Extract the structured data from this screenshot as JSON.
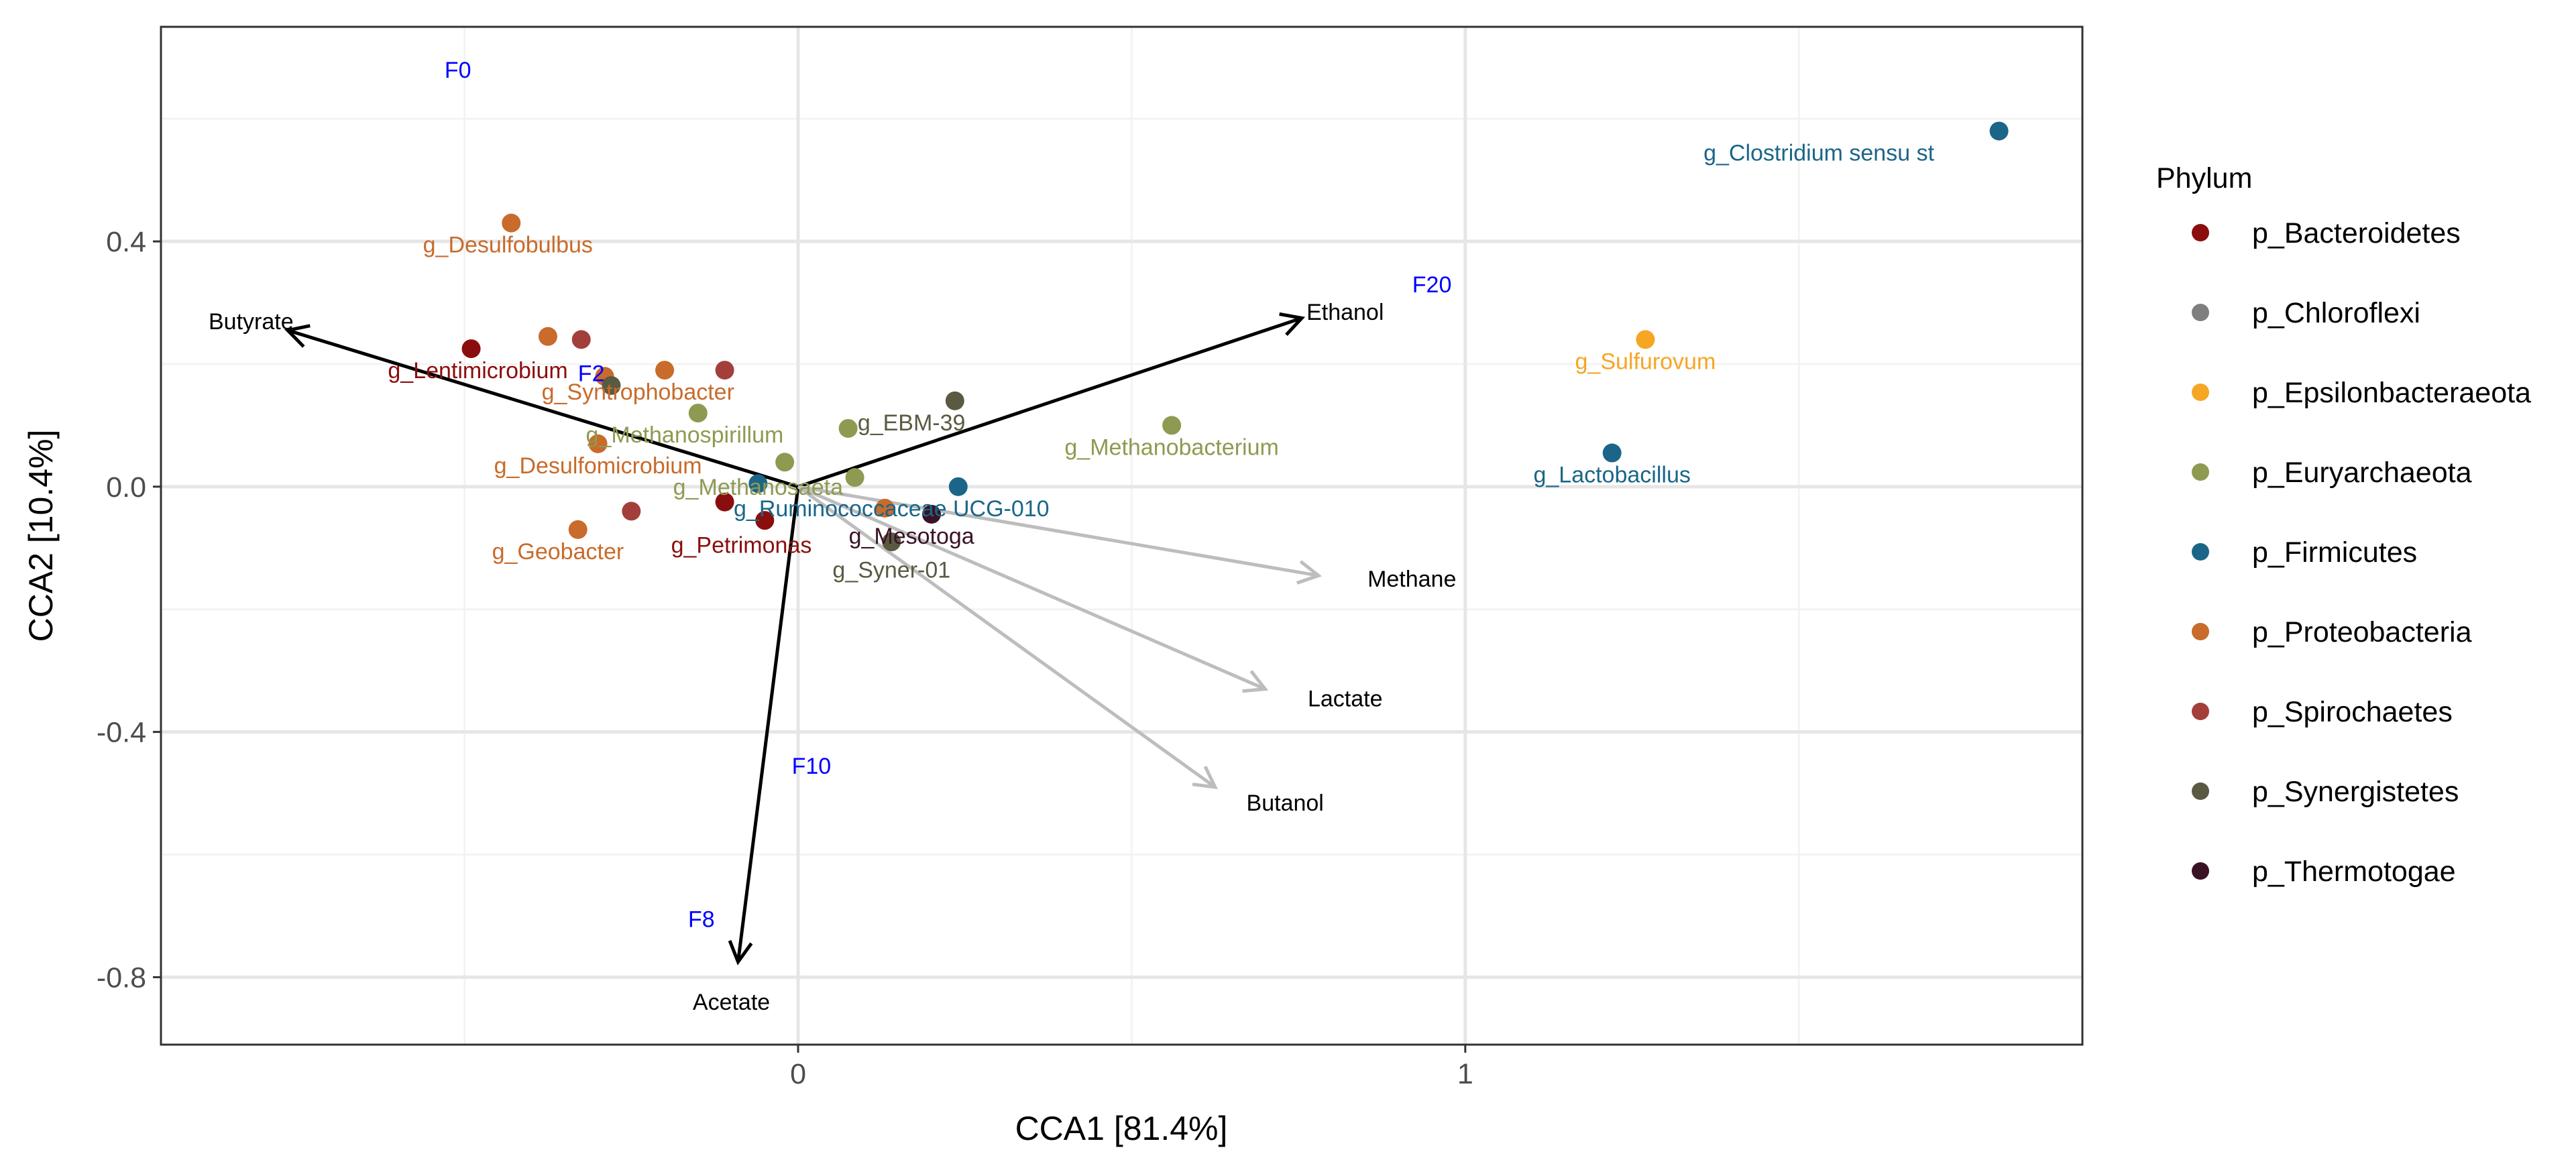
{
  "chart_data": {
    "type": "scatter",
    "title": "",
    "xlabel": "CCA1   [81.4%]",
    "ylabel": "CCA2   [10.4%]",
    "xlim": [
      -0.955,
      1.925
    ],
    "ylim": [
      -0.91,
      0.75
    ],
    "x_ticks": [
      {
        "value": 0,
        "label": "0"
      },
      {
        "value": 1,
        "label": "1"
      }
    ],
    "y_ticks": [
      {
        "value": 0.4,
        "label": "0.4"
      },
      {
        "value": 0.0,
        "label": "0.0"
      },
      {
        "value": -0.4,
        "label": "-0.4"
      },
      {
        "value": -0.8,
        "label": "-0.8"
      }
    ],
    "grid": true,
    "legend": {
      "title": "Phylum",
      "placement": "right",
      "entries": [
        {
          "label": "p_Bacteroidetes",
          "color": "#8b0e0e"
        },
        {
          "label": "p_Chloroflexi",
          "color": "#7f7f7f"
        },
        {
          "label": "p_Epsilonbacteraeota",
          "color": "#f5a623"
        },
        {
          "label": "p_Euryarchaeota",
          "color": "#8e9a51"
        },
        {
          "label": "p_Firmicutes",
          "color": "#1b6688"
        },
        {
          "label": "p_Proteobacteria",
          "color": "#c86b2b"
        },
        {
          "label": "p_Spirochaetes",
          "color": "#a33f3a"
        },
        {
          "label": "p_Synergistetes",
          "color": "#5a5a42"
        },
        {
          "label": "p_Thermotogae",
          "color": "#3a1226"
        }
      ]
    },
    "points": [
      {
        "x": -0.43,
        "y": 0.43,
        "phylum": "p_Proteobacteria"
      },
      {
        "x": -0.49,
        "y": 0.225,
        "phylum": "p_Bacteroidetes"
      },
      {
        "x": -0.375,
        "y": 0.245,
        "phylum": "p_Proteobacteria"
      },
      {
        "x": -0.325,
        "y": 0.24,
        "phylum": "p_Spirochaetes"
      },
      {
        "x": -0.29,
        "y": 0.18,
        "phylum": "p_Proteobacteria"
      },
      {
        "x": -0.28,
        "y": 0.165,
        "phylum": "p_Synergistetes"
      },
      {
        "x": -0.2,
        "y": 0.19,
        "phylum": "p_Proteobacteria"
      },
      {
        "x": -0.11,
        "y": 0.19,
        "phylum": "p_Spirochaetes"
      },
      {
        "x": -0.15,
        "y": 0.12,
        "phylum": "p_Euryarchaeota"
      },
      {
        "x": -0.3,
        "y": 0.07,
        "phylum": "p_Proteobacteria"
      },
      {
        "x": -0.02,
        "y": 0.04,
        "phylum": "p_Euryarchaeota"
      },
      {
        "x": 0.075,
        "y": 0.095,
        "phylum": "p_Euryarchaeota"
      },
      {
        "x": 0.235,
        "y": 0.14,
        "phylum": "p_Synergistetes"
      },
      {
        "x": 0.56,
        "y": 0.1,
        "phylum": "p_Euryarchaeota"
      },
      {
        "x": -0.06,
        "y": 0.005,
        "phylum": "p_Firmicutes"
      },
      {
        "x": 0.24,
        "y": 0.0,
        "phylum": "p_Firmicutes"
      },
      {
        "x": 0.085,
        "y": 0.015,
        "phylum": "p_Euryarchaeota"
      },
      {
        "x": -0.33,
        "y": -0.07,
        "phylum": "p_Proteobacteria"
      },
      {
        "x": -0.25,
        "y": -0.04,
        "phylum": "p_Spirochaetes"
      },
      {
        "x": -0.11,
        "y": -0.025,
        "phylum": "p_Bacteroidetes"
      },
      {
        "x": -0.05,
        "y": -0.055,
        "phylum": "p_Bacteroidetes"
      },
      {
        "x": 0.13,
        "y": -0.035,
        "phylum": "p_Proteobacteria"
      },
      {
        "x": 0.2,
        "y": -0.045,
        "phylum": "p_Thermotogae"
      },
      {
        "x": 0.14,
        "y": -0.09,
        "phylum": "p_Synergistetes"
      },
      {
        "x": 1.22,
        "y": 0.055,
        "phylum": "p_Firmicutes"
      },
      {
        "x": 1.27,
        "y": 0.24,
        "phylum": "p_Epsilonbacteraeota"
      },
      {
        "x": 1.8,
        "y": 0.58,
        "phylum": "p_Firmicutes"
      }
    ],
    "genus_labels": [
      {
        "text": "g_Desulfobulbus",
        "x": -0.435,
        "y": 0.395,
        "phylum": "p_Proteobacteria"
      },
      {
        "text": "g_Lentimicrobium",
        "x": -0.48,
        "y": 0.19,
        "phylum": "p_Bacteroidetes"
      },
      {
        "text": "g_Syntrophobacter",
        "x": -0.24,
        "y": 0.155,
        "phylum": "p_Proteobacteria"
      },
      {
        "text": "g_Methanospirillum",
        "x": -0.17,
        "y": 0.085,
        "phylum": "p_Euryarchaeota"
      },
      {
        "text": "g_Desulfomicrobium",
        "x": -0.3,
        "y": 0.035,
        "phylum": "p_Proteobacteria"
      },
      {
        "text": "g_EBM-39",
        "x": 0.17,
        "y": 0.105,
        "phylum": "p_Synergistetes"
      },
      {
        "text": "g_Methanobacterium",
        "x": 0.56,
        "y": 0.065,
        "phylum": "p_Euryarchaeota"
      },
      {
        "text": "g_Methanosaeta",
        "x": -0.06,
        "y": 0.0,
        "phylum": "p_Euryarchaeota"
      },
      {
        "text": "g_Ruminococcaceae UCG-010",
        "x": 0.14,
        "y": -0.035,
        "phylum": "p_Firmicutes"
      },
      {
        "text": "g_Mesotoga",
        "x": 0.17,
        "y": -0.08,
        "phylum": "p_Thermotogae"
      },
      {
        "text": "g_Geobacter",
        "x": -0.36,
        "y": -0.105,
        "phylum": "p_Proteobacteria"
      },
      {
        "text": "g_Petrimonas",
        "x": -0.085,
        "y": -0.095,
        "phylum": "p_Bacteroidetes"
      },
      {
        "text": "g_Syner-01",
        "x": 0.14,
        "y": -0.135,
        "phylum": "p_Synergistetes"
      },
      {
        "text": "g_Lactobacillus",
        "x": 1.22,
        "y": 0.02,
        "phylum": "p_Firmicutes"
      },
      {
        "text": "g_Sulfurovum",
        "x": 1.27,
        "y": 0.205,
        "phylum": "p_Epsilonbacteraeota"
      },
      {
        "text": "g_Clostridium sensu st",
        "x": 1.53,
        "y": 0.545,
        "phylum": "p_Firmicutes"
      }
    ],
    "sample_labels": [
      {
        "text": "F0",
        "x": -0.51,
        "y": 0.68
      },
      {
        "text": "F20",
        "x": 0.95,
        "y": 0.33
      },
      {
        "text": "F2",
        "x": -0.31,
        "y": 0.185
      },
      {
        "text": "F10",
        "x": 0.02,
        "y": -0.455
      },
      {
        "text": "F8",
        "x": -0.145,
        "y": -0.705
      }
    ],
    "env_vectors": [
      {
        "name": "Butyrate",
        "x": -0.765,
        "y": 0.255,
        "label_x": -0.82,
        "label_y": 0.27,
        "significant": true
      },
      {
        "name": "Ethanol",
        "x": 0.755,
        "y": 0.275,
        "label_x": 0.82,
        "label_y": 0.285,
        "significant": true
      },
      {
        "name": "Acetate",
        "x": -0.09,
        "y": -0.775,
        "label_x": -0.1,
        "label_y": -0.84,
        "significant": true
      },
      {
        "name": "Methane",
        "x": 0.78,
        "y": -0.145,
        "label_x": 0.92,
        "label_y": -0.15,
        "significant": false
      },
      {
        "name": "Lactate",
        "x": 0.7,
        "y": -0.33,
        "label_x": 0.82,
        "label_y": -0.345,
        "significant": false
      },
      {
        "name": "Butanol",
        "x": 0.625,
        "y": -0.49,
        "label_x": 0.73,
        "label_y": -0.515,
        "significant": false
      }
    ]
  }
}
